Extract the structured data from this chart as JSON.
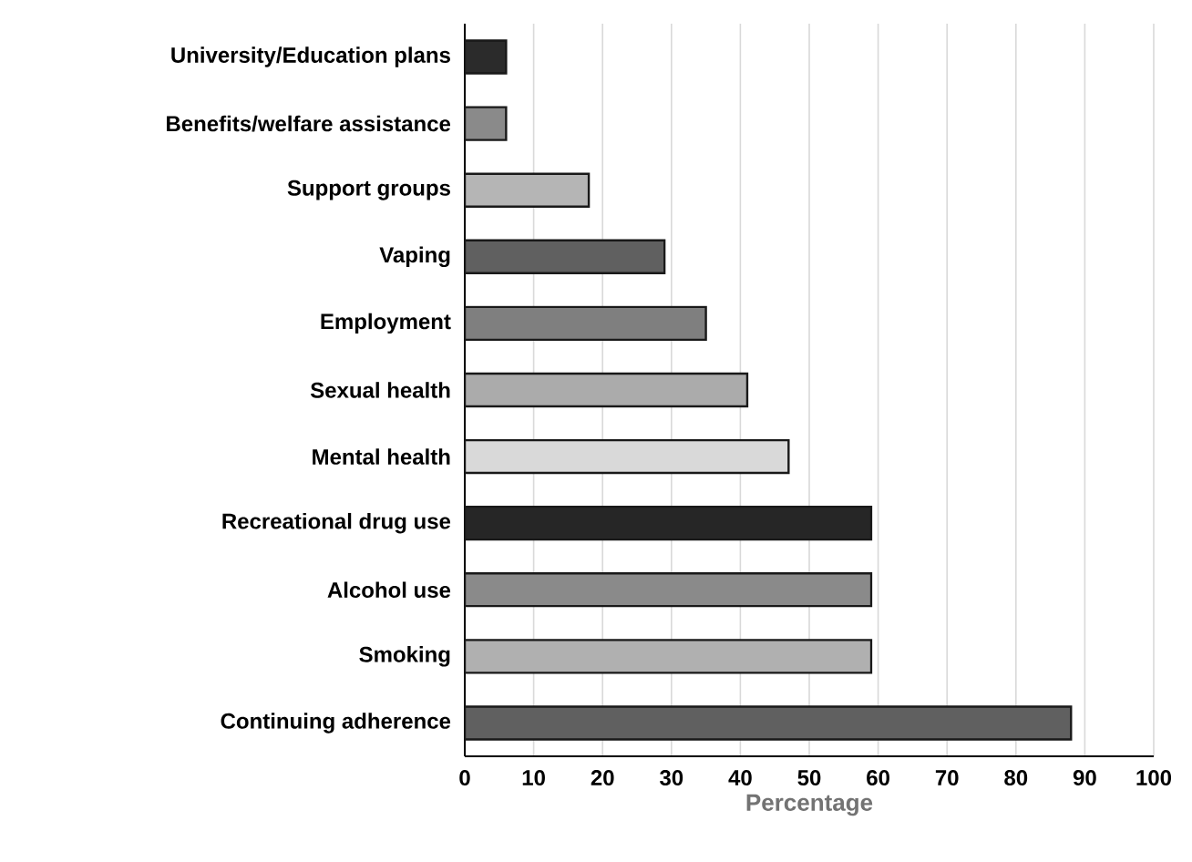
{
  "chart_data": {
    "type": "bar",
    "orientation": "horizontal",
    "xlabel": "Percentage",
    "categories": [
      "University/Education plans",
      "Benefits/welfare assistance",
      "Support groups",
      "Vaping",
      "Employment",
      "Sexual health",
      "Mental health",
      "Recreational drug use",
      "Alcohol use",
      "Smoking",
      "Continuing adherence"
    ],
    "values": [
      6,
      6,
      18,
      29,
      35,
      41,
      47,
      59,
      59,
      59,
      88
    ],
    "colors": [
      "#2b2b2b",
      "#8a8a8a",
      "#b5b5b5",
      "#606060",
      "#7f7f7f",
      "#ababab",
      "#d9d9d9",
      "#262626",
      "#8a8a8a",
      "#b0b0b0",
      "#606060"
    ],
    "xlim": [
      0,
      100
    ],
    "xticks": [
      0,
      10,
      20,
      30,
      40,
      50,
      60,
      70,
      80,
      90,
      100
    ],
    "grid": "x"
  }
}
